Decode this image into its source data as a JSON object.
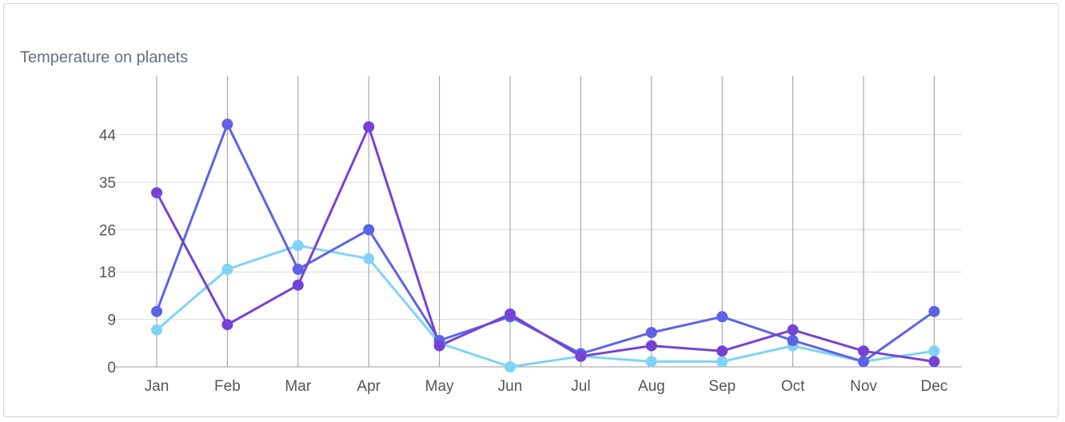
{
  "chart_data": {
    "type": "line",
    "title": "Temperature on planets",
    "xlabel": "",
    "ylabel": "",
    "categories": [
      "Jan",
      "Feb",
      "Mar",
      "Apr",
      "May",
      "Jun",
      "Jul",
      "Aug",
      "Sep",
      "Oct",
      "Nov",
      "Dec"
    ],
    "yticks": [
      0,
      9,
      18,
      26,
      35,
      44
    ],
    "ylim": [
      0,
      54
    ],
    "grid": {
      "vertical": true,
      "horizontal": true
    },
    "legend": "none",
    "series": [
      {
        "color": "#7fd3f7",
        "values": [
          7,
          18.5,
          23,
          20.5,
          4.5,
          0,
          2,
          1,
          1,
          4,
          1,
          3
        ]
      },
      {
        "color": "#5c63e8",
        "values": [
          10.5,
          46,
          18.5,
          26,
          5,
          9.5,
          2.5,
          6.5,
          9.5,
          5,
          1,
          10.5
        ]
      },
      {
        "color": "#7443d6",
        "values": [
          33,
          8,
          15.5,
          45.5,
          4,
          10,
          2,
          4,
          3,
          7,
          3,
          1
        ]
      }
    ]
  }
}
